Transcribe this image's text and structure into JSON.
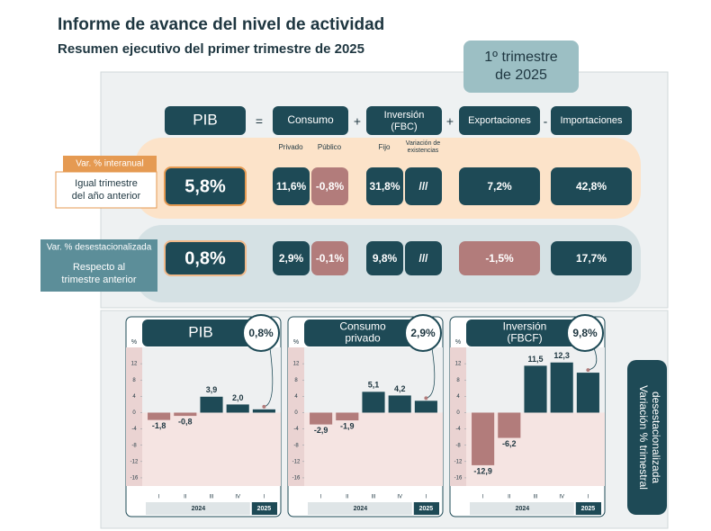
{
  "header": {
    "title": "Informe de avance del nivel de actividad",
    "subtitle": "Resumen ejecutivo del primer trimestre de 2025",
    "badge": [
      "1º trimestre",
      "de 2025"
    ]
  },
  "summary": {
    "columns": {
      "pib": "PIB",
      "equals": "=",
      "consumo": "Consumo",
      "consumo_sub": [
        "Privado",
        "Público"
      ],
      "plus1": "+",
      "inversion": [
        "Inversión",
        "(FBC)"
      ],
      "inversion_sub": [
        "Fijo",
        "Variación de",
        "existencias"
      ],
      "plus2": "+",
      "exportaciones": "Exportaciones",
      "minus": "-",
      "importaciones": "Importaciones"
    },
    "rows": [
      {
        "tag": "Var. % interanual",
        "label": [
          "Igual trimestre",
          "del año anterior"
        ],
        "pib": "5,8%",
        "consumo_privado": "11,6%",
        "consumo_publico": "-0,8%",
        "inversion_fijo": "31,8%",
        "inversion_existencias": "///",
        "exportaciones": "7,2%",
        "importaciones": "42,8%"
      },
      {
        "tag": "Var. % desestacionalizada",
        "label": [
          "Respecto al",
          "trimestre anterior"
        ],
        "pib": "0,8%",
        "consumo_privado": "2,9%",
        "consumo_publico": "-0,1%",
        "inversion_fijo": "9,8%",
        "inversion_existencias": "///",
        "exportaciones": "-1,5%",
        "importaciones": "17,7%"
      }
    ]
  },
  "chart_data": [
    {
      "type": "bar",
      "title": [
        "PIB"
      ],
      "badge": "0,8%",
      "y_unit": "%",
      "categories": [
        "I",
        "II",
        "III",
        "IV",
        "I"
      ],
      "years": [
        "2024",
        "2025"
      ],
      "values": [
        -1.8,
        -0.8,
        3.9,
        2.0,
        0.8
      ],
      "value_labels": [
        "-1,8",
        "-0,8",
        "3,9",
        "2,0",
        null
      ],
      "ylim": [
        -18,
        16
      ],
      "yticks": [
        12,
        8,
        4,
        0,
        -4,
        -8,
        -12,
        -16
      ],
      "color": "#1e4a56",
      "negative_color": "#b27c7b"
    },
    {
      "type": "bar",
      "title": [
        "Consumo",
        "privado"
      ],
      "badge": "2,9%",
      "y_unit": "%",
      "categories": [
        "I",
        "II",
        "III",
        "IV",
        "I"
      ],
      "years": [
        "2024",
        "2025"
      ],
      "values": [
        -2.9,
        -1.9,
        5.1,
        4.2,
        2.9
      ],
      "value_labels": [
        "-2,9",
        "-1,9",
        "5,1",
        "4,2",
        null
      ],
      "ylim": [
        -18,
        16
      ],
      "yticks": [
        12,
        8,
        4,
        0,
        -4,
        -8,
        -12,
        -16
      ],
      "color": "#1e4a56",
      "negative_color": "#b27c7b"
    },
    {
      "type": "bar",
      "title": [
        "Inversión",
        "(FBCF)"
      ],
      "badge": "9,8%",
      "y_unit": "%",
      "categories": [
        "I",
        "II",
        "III",
        "IV",
        "I"
      ],
      "years": [
        "2024",
        "2025"
      ],
      "values": [
        -12.9,
        -6.2,
        11.5,
        12.3,
        9.8
      ],
      "value_labels": [
        "-12,9",
        "-6,2",
        "11,5",
        "12,3",
        null
      ],
      "ylim": [
        -18,
        16
      ],
      "yticks": [
        12,
        8,
        4,
        0,
        -4,
        -8,
        -12,
        -16
      ],
      "color": "#1e4a56",
      "negative_color": "#b27c7b"
    }
  ],
  "side_label": [
    "Variación % trimestral",
    "desestacionalizada"
  ]
}
